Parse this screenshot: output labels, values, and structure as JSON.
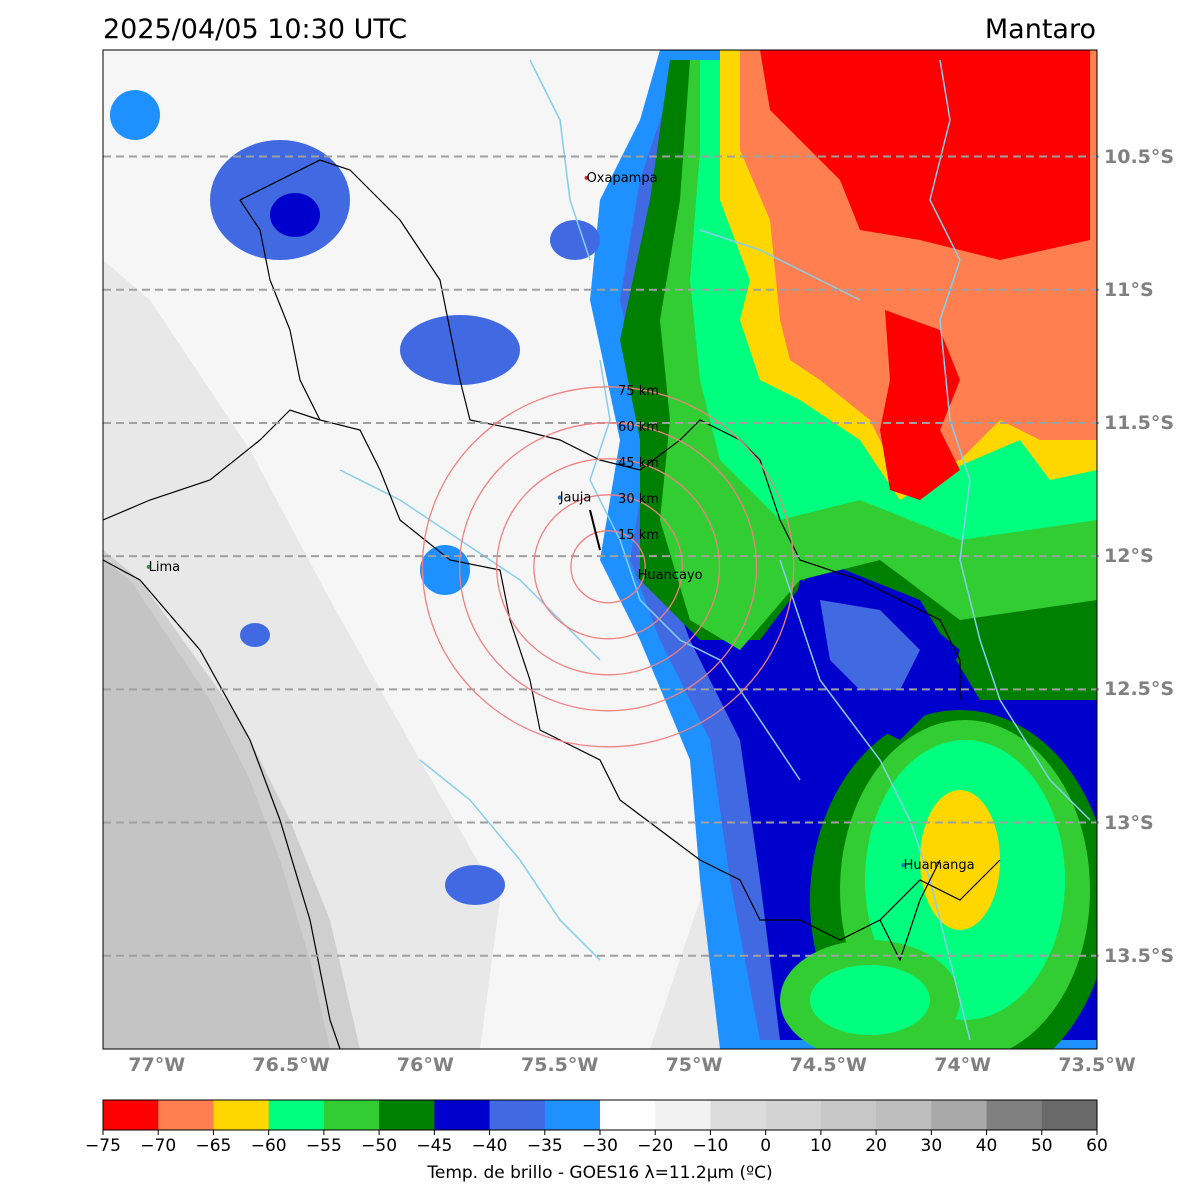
{
  "header": {
    "datetime": "2025/04/05 10:30 UTC",
    "region": "Mantaro"
  },
  "map": {
    "lon_range": [
      -77.2,
      -73.5
    ],
    "lat_range": [
      -13.85,
      -10.1
    ],
    "lat_ticks": [
      {
        "value": -10.5,
        "label": "10.5°S"
      },
      {
        "value": -11.0,
        "label": "11°S"
      },
      {
        "value": -11.5,
        "label": "11.5°S"
      },
      {
        "value": -12.0,
        "label": "12°S"
      },
      {
        "value": -12.5,
        "label": "12.5°S"
      },
      {
        "value": -13.0,
        "label": "13°S"
      },
      {
        "value": -13.5,
        "label": "13.5°S"
      }
    ],
    "lon_ticks": [
      {
        "value": -77.0,
        "label": "77°W"
      },
      {
        "value": -76.5,
        "label": "76.5°W"
      },
      {
        "value": -76.0,
        "label": "76°W"
      },
      {
        "value": -75.5,
        "label": "75.5°W"
      },
      {
        "value": -75.0,
        "label": "75°W"
      },
      {
        "value": -74.5,
        "label": "74.5°W"
      },
      {
        "value": -74.0,
        "label": "74°W"
      },
      {
        "value": -73.5,
        "label": "73.5°W"
      }
    ],
    "cities": [
      {
        "name": "Oxapampa",
        "lon": -75.4,
        "lat": -10.58,
        "dot_color": "#d62728"
      },
      {
        "name": "Jauja",
        "lon": -75.5,
        "lat": -11.78,
        "dot_color": "#1f77b4"
      },
      {
        "name": "Lima",
        "lon": -77.03,
        "lat": -12.04,
        "dot_color": "#2ca02c"
      },
      {
        "name": "Huancayo",
        "lon": -75.21,
        "lat": -12.07,
        "dot_color": "#1f77b4"
      },
      {
        "name": "Huamanga",
        "lon": -74.22,
        "lat": -13.16,
        "dot_color": "#1f77b4"
      }
    ],
    "radar_center": {
      "lon": -75.32,
      "lat": -12.04
    },
    "range_rings": [
      {
        "radius_km": 15,
        "label": "15 km"
      },
      {
        "radius_km": 30,
        "label": "30 km"
      },
      {
        "radius_km": 45,
        "label": "45 km"
      },
      {
        "radius_km": 60,
        "label": "60 km"
      },
      {
        "radius_km": 75,
        "label": "75 km"
      }
    ]
  },
  "colorbar": {
    "label": "Temp. de brillo - GOES16 λ=11.2μm (ºC)",
    "ticks": [
      "−75",
      "−70",
      "−65",
      "−60",
      "−55",
      "−50",
      "−45",
      "−40",
      "−35",
      "−30",
      "−20",
      "−10",
      "0",
      "10",
      "20",
      "30",
      "40",
      "50",
      "60"
    ],
    "colors": [
      "#ff0000",
      "#ff7f50",
      "#ffd700",
      "#00ff7f",
      "#32cd32",
      "#008000",
      "#0000cd",
      "#4169e1",
      "#1e90ff",
      "#ffffff",
      "#f2f2f2",
      "#dcdcdc",
      "#d3d3d3",
      "#c8c8c8",
      "#bebebe",
      "#a9a9a9",
      "#808080",
      "#696969",
      "#000000"
    ]
  }
}
